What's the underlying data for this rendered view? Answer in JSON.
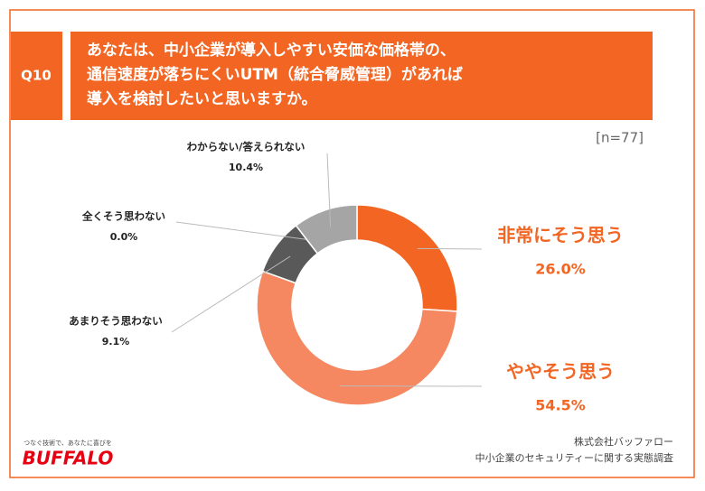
{
  "chart_data": {
    "type": "donut",
    "question_label": "Q10",
    "title": [
      "あなたは、中小企業が導入しやすい安価な価格帯の、",
      "通信速度が落ちにくいUTM（統合脅威管理）があれば",
      "導入を検討したいと思いますか。"
    ],
    "sample_size": "[n=77]",
    "categories": [
      "非常にそう思う",
      "ややそう思う",
      "あまりそう思わない",
      "全くそう思わない",
      "わからない/答えられない"
    ],
    "values": [
      26.0,
      54.5,
      9.1,
      0.0,
      10.4
    ],
    "value_labels": [
      "26.0%",
      "54.5%",
      "9.1%",
      "0.0%",
      "10.4%"
    ],
    "colors": [
      "#f26522",
      "#f58860",
      "#595959",
      "#7f7f7f",
      "#a5a5a5"
    ],
    "footer": {
      "tagline": "つなぐ技術で、あなたに喜びを",
      "logo": "BUFFALO",
      "company": "株式会社バッファロー",
      "survey": "中小企業のセキュリティーに関する実態調査"
    }
  }
}
